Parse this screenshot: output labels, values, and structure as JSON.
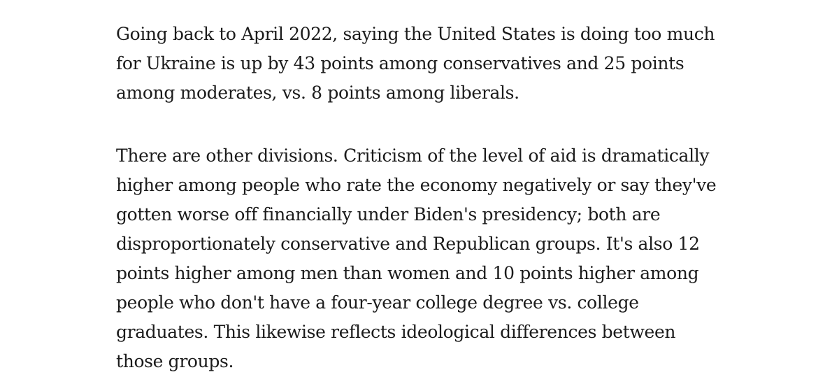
{
  "article": {
    "paragraphs": [
      {
        "lines": [
          "Going back to April 2022, saying the United States is doing too much",
          "for Ukraine is up by 43 points among conservatives and 25 points",
          "among moderates, vs. 8 points among liberals."
        ]
      },
      {
        "lines": [
          "There are other divisions. Criticism of the level of aid is dramatically",
          "higher among people who rate the economy negatively or say they've",
          "gotten worse off financially under Biden's presidency; both are",
          "disproportionately conservative and Republican groups. It's also 12",
          "points higher among men than women and 10 points higher among",
          "people who don't have a four-year college degree vs. college",
          "graduates. This likewise reflects ideological differences between",
          "those groups."
        ]
      }
    ]
  }
}
